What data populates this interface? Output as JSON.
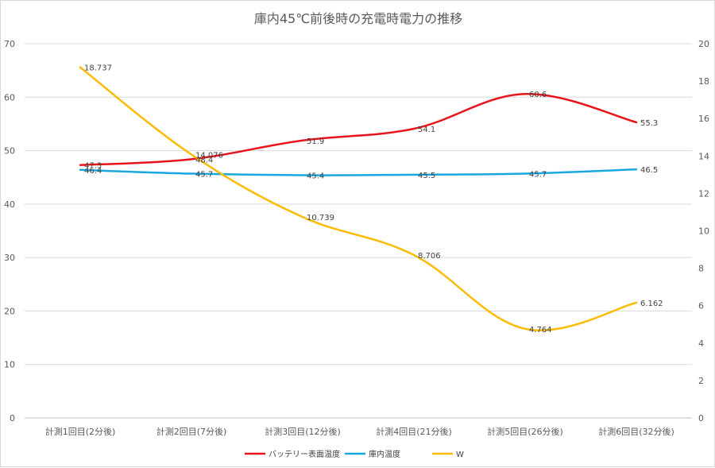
{
  "chart_data": {
    "type": "line",
    "title": "庫内45℃前後時の充電時電力の推移",
    "categories": [
      "計測1回目(2分後)",
      "計測2回目(7分後)",
      "計測3回目(12分後)",
      "計測4回目(21分後)",
      "計測5回目(26分後)",
      "計測6回目(32分後)"
    ],
    "ylim_left": [
      0,
      70
    ],
    "yticks_left": [
      "0",
      "10",
      "20",
      "30",
      "40",
      "50",
      "60",
      "70"
    ],
    "ylim_right": [
      0,
      20
    ],
    "yticks_right": [
      "0",
      "2",
      "4",
      "6",
      "8",
      "10",
      "12",
      "14",
      "16",
      "18",
      "20"
    ],
    "grid": true,
    "legend_position": "bottom",
    "series": [
      {
        "name": "バッテリー表面温度",
        "axis": "left",
        "color": "#e8141c",
        "values": [
          47.3,
          48.4,
          51.9,
          54.1,
          60.6,
          55.3
        ],
        "labels": [
          "47.3",
          "48.4",
          "51.9",
          "54.1",
          "60.6",
          "55.3"
        ]
      },
      {
        "name": "庫内温度",
        "axis": "left",
        "color": "#1aa7e0",
        "values": [
          46.4,
          45.7,
          45.4,
          45.5,
          45.7,
          46.5
        ],
        "labels": [
          "46.4",
          "45.7",
          "45.4",
          "45.5",
          "45.7",
          "46.5"
        ]
      },
      {
        "name": "W",
        "axis": "right",
        "color": "#fbbc09",
        "values": [
          18.737,
          14.076,
          10.739,
          8.706,
          4.764,
          6.162
        ],
        "labels": [
          "18.737",
          "14.076",
          "10.739",
          "8.706",
          "4.764",
          "6.162"
        ]
      }
    ]
  }
}
